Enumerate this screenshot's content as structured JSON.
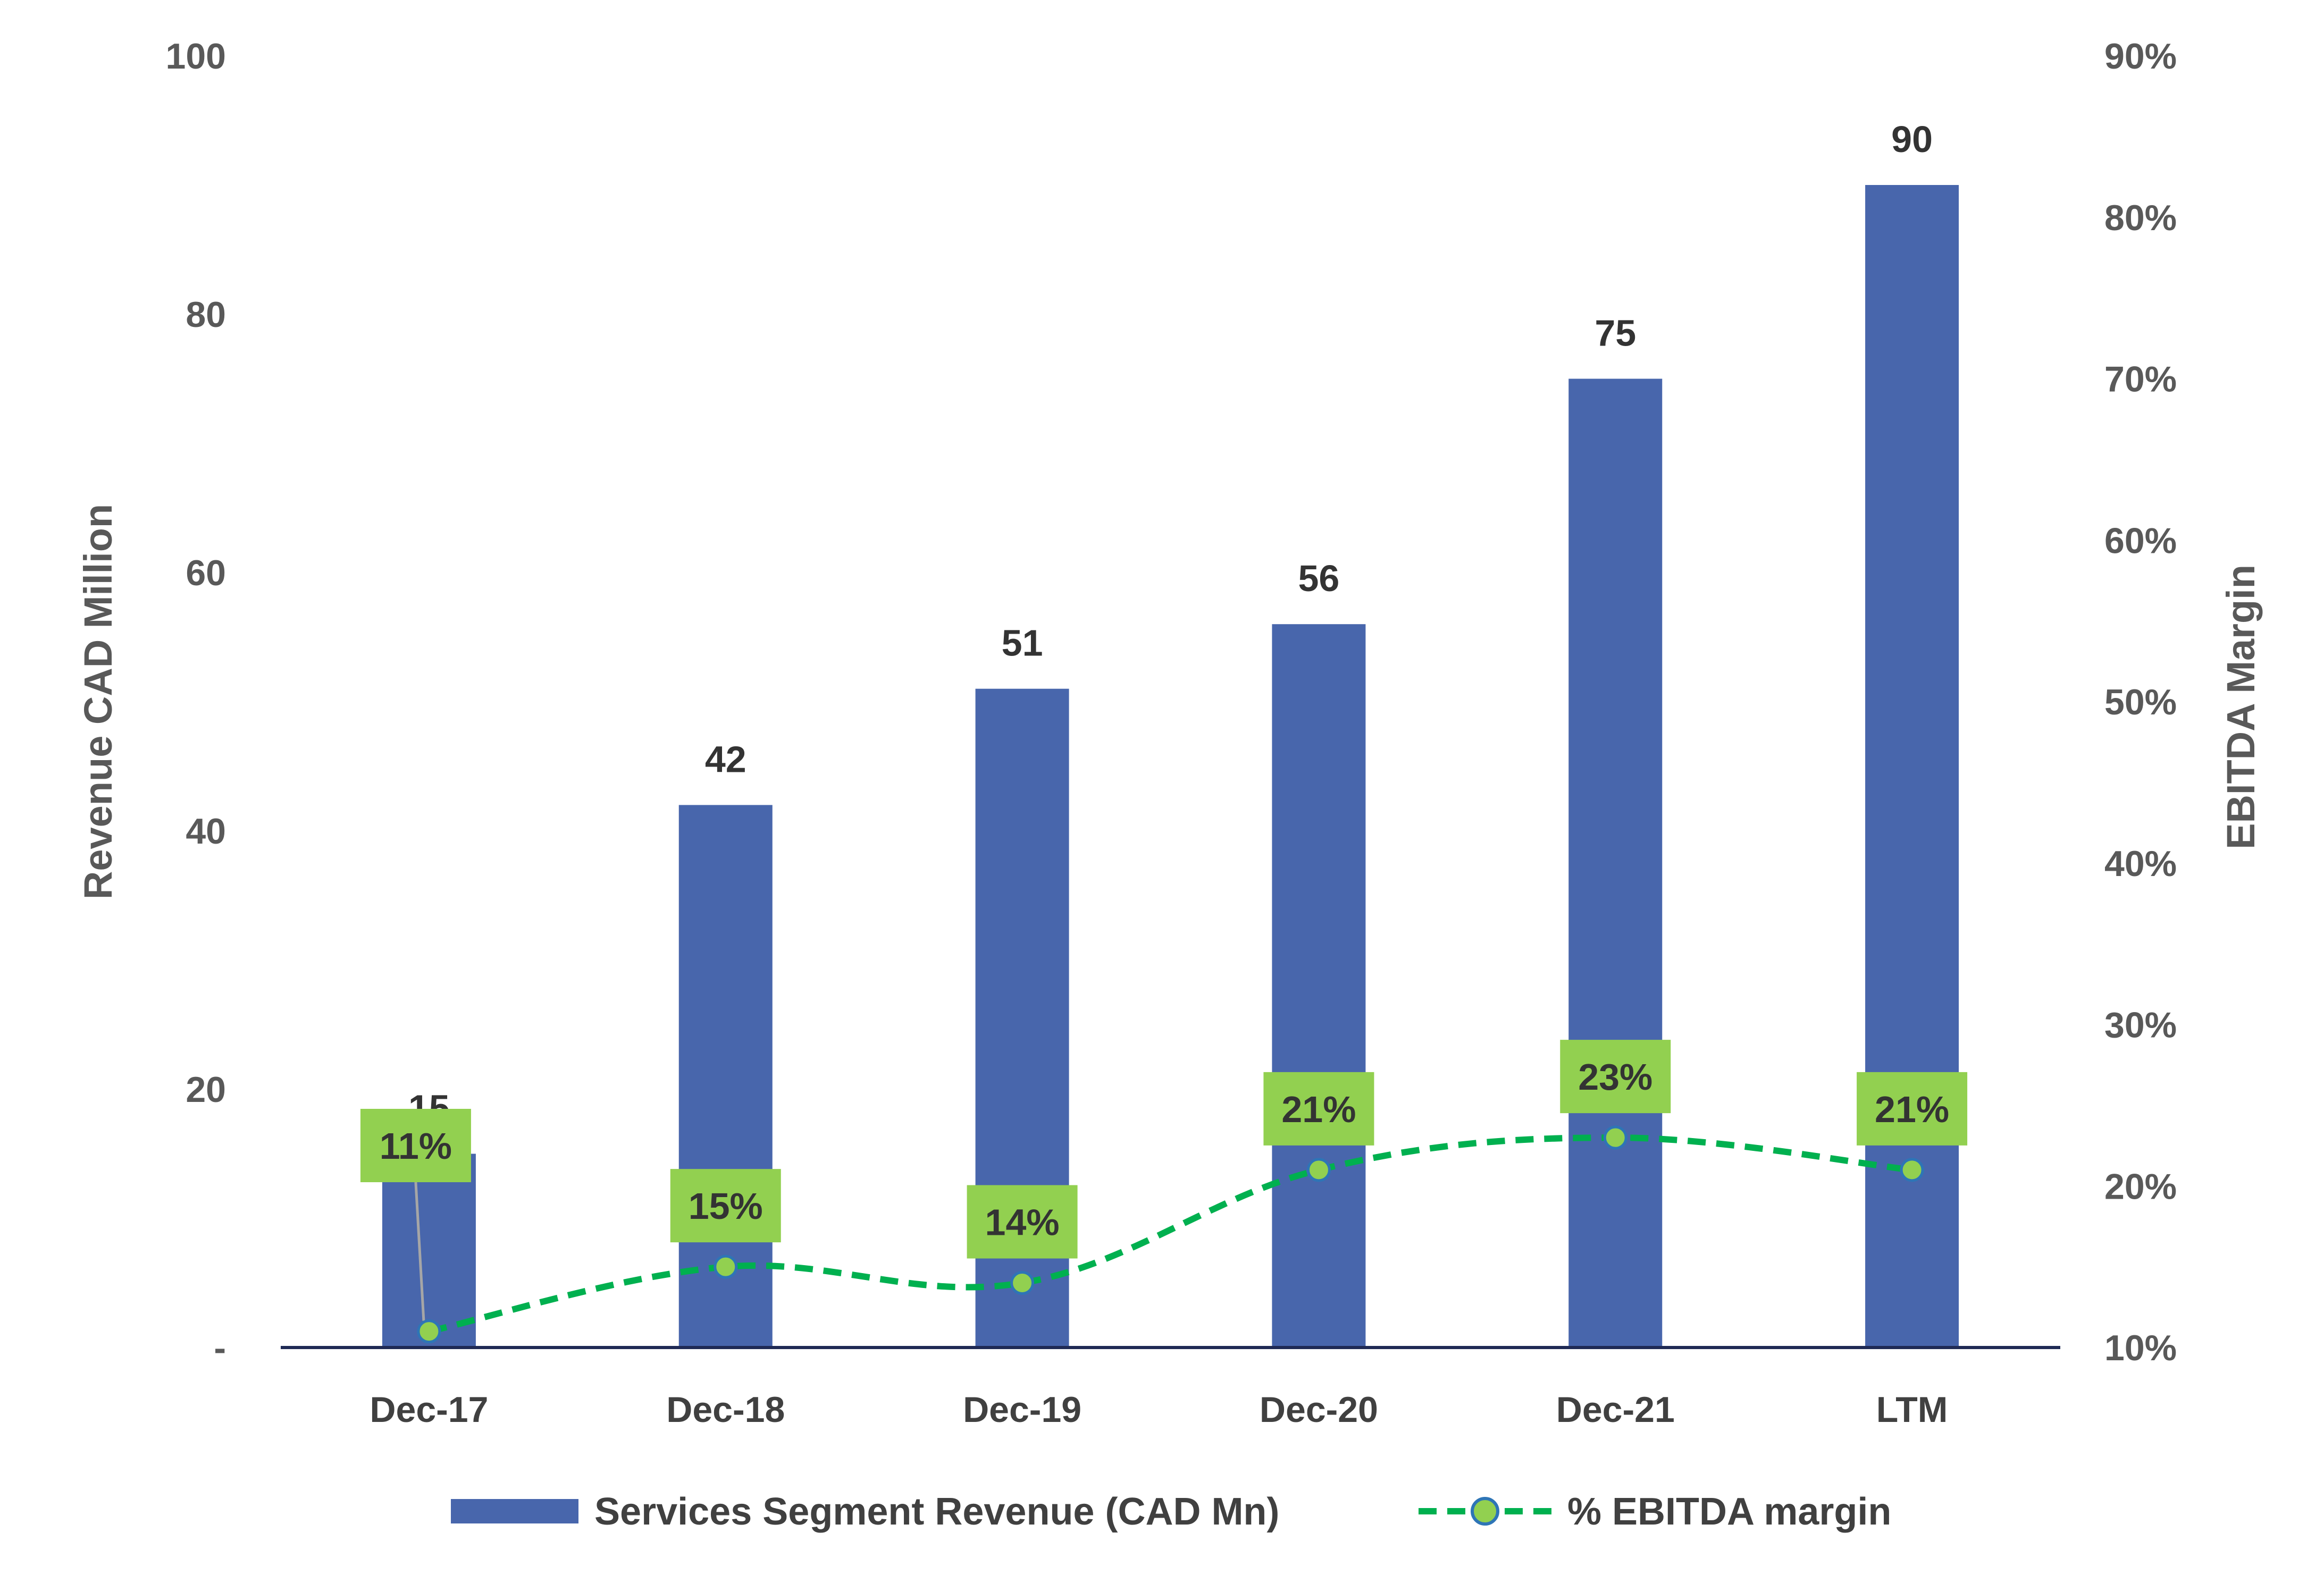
{
  "colors": {
    "bar": "#4866AC",
    "line": "#00B04F",
    "marker_fill": "#92D050",
    "marker_stroke": "#2E75B6",
    "label_box": "#92D050",
    "axis": "#1F2A55"
  },
  "chart_data": {
    "type": "bar",
    "categories": [
      "Dec-17",
      "Dec-18",
      "Dec-19",
      "Dec-20",
      "Dec-21",
      "LTM"
    ],
    "series": [
      {
        "name": "Services Segment Revenue (CAD Mn)",
        "type": "bar",
        "axis": "left",
        "values": [
          15,
          42,
          51,
          56,
          75,
          90
        ],
        "labels": [
          "15",
          "42",
          "51",
          "56",
          "75",
          "90"
        ]
      },
      {
        "name": "% EBITDA margin",
        "type": "line",
        "axis": "right",
        "style": "dashed",
        "values": [
          11,
          15,
          14,
          21,
          23,
          21
        ],
        "labels": [
          "11%",
          "15%",
          "14%",
          "21%",
          "23%",
          "21%"
        ]
      }
    ],
    "ylabel": "Revenue CAD Million",
    "y2label": "EBITDA Margin",
    "ylim": [
      0,
      100
    ],
    "y2lim": [
      10,
      90
    ],
    "yticks": [
      "-",
      "20",
      "40",
      "60",
      "80",
      "100"
    ],
    "y2ticks": [
      "10%",
      "20%",
      "30%",
      "40%",
      "50%",
      "60%",
      "70%",
      "80%",
      "90%"
    ],
    "legend": "bottom",
    "grid": false
  }
}
